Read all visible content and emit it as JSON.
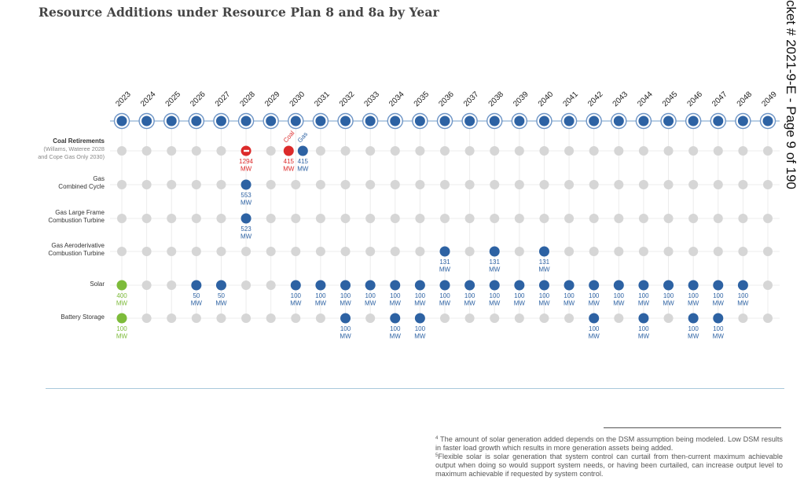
{
  "title": "Resource Additions under Resource Plan 8 and 8a by Year",
  "side_text": "cket # 2021-9-E  - Page 9 of 190",
  "colors": {
    "timeline": "#2d62a3",
    "timeline_ring": "#6e95c6",
    "timeline_line": "#b9cfe5",
    "empty_dot": "#d6d6d6",
    "grid": "#ececec",
    "blue": "#2d62a3",
    "red": "#dc2a2a",
    "green": "#7dbb3a",
    "label_blue": "#2d62a3"
  },
  "chart_data": {
    "type": "table",
    "title": "Resource Additions under Resource Plan 8 and 8a by Year",
    "years": [
      "2023",
      "2024",
      "2025",
      "2026",
      "2027",
      "2028",
      "2029",
      "2030",
      "2031",
      "2032",
      "2033",
      "2034",
      "2035",
      "2036",
      "2037",
      "2038",
      "2039",
      "2040",
      "2041",
      "2042",
      "2043",
      "2044",
      "2045",
      "2046",
      "2047",
      "2048",
      "2049"
    ],
    "rows": [
      {
        "key": "coal",
        "label": "Coal Retirements",
        "sublabel_1": "(Willams, Wateree 2028",
        "sublabel_2": "and Cope Gas Only 2030)",
        "entries": [
          {
            "year": "2028",
            "value": 1294,
            "text_1": "1294",
            "text_2": "MW",
            "color": "red",
            "marker": "minus"
          },
          {
            "year": "2030",
            "value": 415,
            "text_1": "415",
            "text_2": "MW",
            "color": "red",
            "offset": "left",
            "tag": "Coal"
          },
          {
            "year": "2030",
            "value": 415,
            "text_1": "415",
            "text_2": "MW",
            "color": "blue",
            "offset": "right",
            "tag": "Gas"
          }
        ]
      },
      {
        "key": "gcc",
        "label": "Gas",
        "sublabel_1": "Combined Cycle",
        "entries": [
          {
            "year": "2028",
            "value": 553,
            "text_1": "553",
            "text_2": "MW",
            "color": "blue"
          }
        ]
      },
      {
        "key": "glfct",
        "label": "Gas Large Frame",
        "sublabel_1": "Combustion Turbine",
        "entries": [
          {
            "year": "2028",
            "value": 523,
            "text_1": "523",
            "text_2": "MW",
            "color": "blue"
          }
        ]
      },
      {
        "key": "gact",
        "label": "Gas Aeroderivative",
        "sublabel_1": "Combustion Turbine",
        "entries": [
          {
            "year": "2036",
            "value": 131,
            "text_1": "131",
            "text_2": "MW",
            "color": "blue"
          },
          {
            "year": "2038",
            "value": 131,
            "text_1": "131",
            "text_2": "MW",
            "color": "blue"
          },
          {
            "year": "2040",
            "value": 131,
            "text_1": "131",
            "text_2": "MW",
            "color": "blue"
          }
        ]
      },
      {
        "key": "solar",
        "label": "Solar",
        "entries": [
          {
            "year": "2023",
            "value": 400,
            "text_1": "400",
            "text_2": "MW",
            "color": "green"
          },
          {
            "year": "2026",
            "value": 50,
            "text_1": "50",
            "text_2": "MW",
            "color": "blue"
          },
          {
            "year": "2027",
            "value": 50,
            "text_1": "50",
            "text_2": "MW",
            "color": "blue"
          },
          {
            "year": "2030",
            "value": 100,
            "text_1": "100",
            "text_2": "MW",
            "color": "blue"
          },
          {
            "year": "2031",
            "value": 100,
            "text_1": "100",
            "text_2": "MW",
            "color": "blue"
          },
          {
            "year": "2032",
            "value": 100,
            "text_1": "100",
            "text_2": "MW",
            "color": "blue"
          },
          {
            "year": "2033",
            "value": 100,
            "text_1": "100",
            "text_2": "MW",
            "color": "blue"
          },
          {
            "year": "2034",
            "value": 100,
            "text_1": "100",
            "text_2": "MW",
            "color": "blue"
          },
          {
            "year": "2035",
            "value": 100,
            "text_1": "100",
            "text_2": "MW",
            "color": "blue"
          },
          {
            "year": "2036",
            "value": 100,
            "text_1": "100",
            "text_2": "MW",
            "color": "blue"
          },
          {
            "year": "2037",
            "value": 100,
            "text_1": "100",
            "text_2": "MW",
            "color": "blue"
          },
          {
            "year": "2038",
            "value": 100,
            "text_1": "100",
            "text_2": "MW",
            "color": "blue"
          },
          {
            "year": "2039",
            "value": 100,
            "text_1": "100",
            "text_2": "MW",
            "color": "blue"
          },
          {
            "year": "2040",
            "value": 100,
            "text_1": "100",
            "text_2": "MW",
            "color": "blue"
          },
          {
            "year": "2041",
            "value": 100,
            "text_1": "100",
            "text_2": "MW",
            "color": "blue"
          },
          {
            "year": "2042",
            "value": 100,
            "text_1": "100",
            "text_2": "MW",
            "color": "blue"
          },
          {
            "year": "2043",
            "value": 100,
            "text_1": "100",
            "text_2": "MW",
            "color": "blue"
          },
          {
            "year": "2044",
            "value": 100,
            "text_1": "100",
            "text_2": "MW",
            "color": "blue"
          },
          {
            "year": "2045",
            "value": 100,
            "text_1": "100",
            "text_2": "MW",
            "color": "blue"
          },
          {
            "year": "2046",
            "value": 100,
            "text_1": "100",
            "text_2": "MW",
            "color": "blue"
          },
          {
            "year": "2047",
            "value": 100,
            "text_1": "100",
            "text_2": "MW",
            "color": "blue"
          },
          {
            "year": "2048",
            "value": 100,
            "text_1": "100",
            "text_2": "MW",
            "color": "blue"
          }
        ]
      },
      {
        "key": "battery",
        "label": "Battery Storage",
        "entries": [
          {
            "year": "2023",
            "value": 100,
            "text_1": "100",
            "text_2": "MW",
            "color": "green"
          },
          {
            "year": "2032",
            "value": 100,
            "text_1": "100",
            "text_2": "MW",
            "color": "blue"
          },
          {
            "year": "2034",
            "value": 100,
            "text_1": "100",
            "text_2": "MW",
            "color": "blue"
          },
          {
            "year": "2035",
            "value": 100,
            "text_1": "100",
            "text_2": "MW",
            "color": "blue"
          },
          {
            "year": "2042",
            "value": 100,
            "text_1": "100",
            "text_2": "MW",
            "color": "blue"
          },
          {
            "year": "2044",
            "value": 100,
            "text_1": "100",
            "text_2": "MW",
            "color": "blue"
          },
          {
            "year": "2046",
            "value": 100,
            "text_1": "100",
            "text_2": "MW",
            "color": "blue"
          },
          {
            "year": "2047",
            "value": 100,
            "text_1": "100",
            "text_2": "MW",
            "color": "blue"
          }
        ]
      }
    ]
  },
  "footnotes": {
    "fn4_mark": "4",
    "fn4_text": " The amount of solar generation added depends on the DSM assumption being modeled. Low DSM results in faster load growth which results in more generation assets being added.",
    "fn5_mark": "5",
    "fn5_text": "Flexible solar is solar generation that system control can curtail from then-current maximum achievable output when doing so would support system needs, or having been curtailed, can increase output level to maximum achievable if requested by system control."
  }
}
